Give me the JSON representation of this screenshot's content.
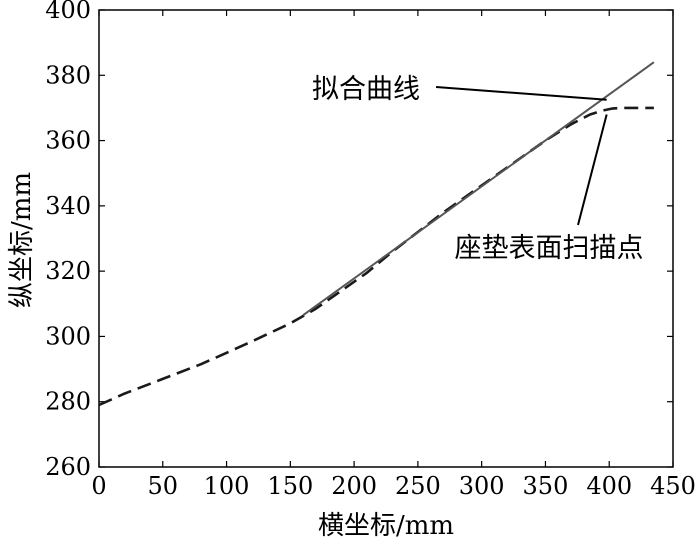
{
  "chart_data": {
    "type": "line",
    "xlabel": "横坐标/mm",
    "ylabel": "纵坐标/mm",
    "xlim": [
      0,
      450
    ],
    "ylim": [
      260,
      400
    ],
    "xticks": [
      0,
      50,
      100,
      150,
      200,
      250,
      300,
      350,
      400,
      450
    ],
    "yticks": [
      260,
      280,
      300,
      320,
      340,
      360,
      380,
      400
    ],
    "grid": false,
    "legend": "none",
    "series": [
      {
        "name": "座垫表面扫描点",
        "style": "dashed",
        "color": "#1a1a1a",
        "x": [
          0,
          20,
          50,
          80,
          100,
          120,
          150,
          170,
          190,
          210,
          230,
          250,
          270,
          290,
          310,
          330,
          350,
          370,
          385,
          395,
          402,
          410,
          420,
          435
        ],
        "y": [
          279,
          282.5,
          287,
          291.5,
          295,
          298.5,
          304,
          308.5,
          314,
          319.5,
          326,
          332,
          338,
          343.5,
          349,
          354.5,
          360,
          365,
          368,
          369.2,
          369.8,
          370,
          370,
          370
        ]
      },
      {
        "name": "拟合曲线",
        "style": "solid",
        "color": "#555555",
        "x": [
          160,
          435
        ],
        "y": [
          306.5,
          384
        ]
      }
    ],
    "annotations": [
      {
        "text": "拟合曲线",
        "point": [
          398,
          372.5
        ]
      },
      {
        "text": "座垫表面扫描点",
        "point": [
          398,
          368
        ]
      }
    ]
  }
}
